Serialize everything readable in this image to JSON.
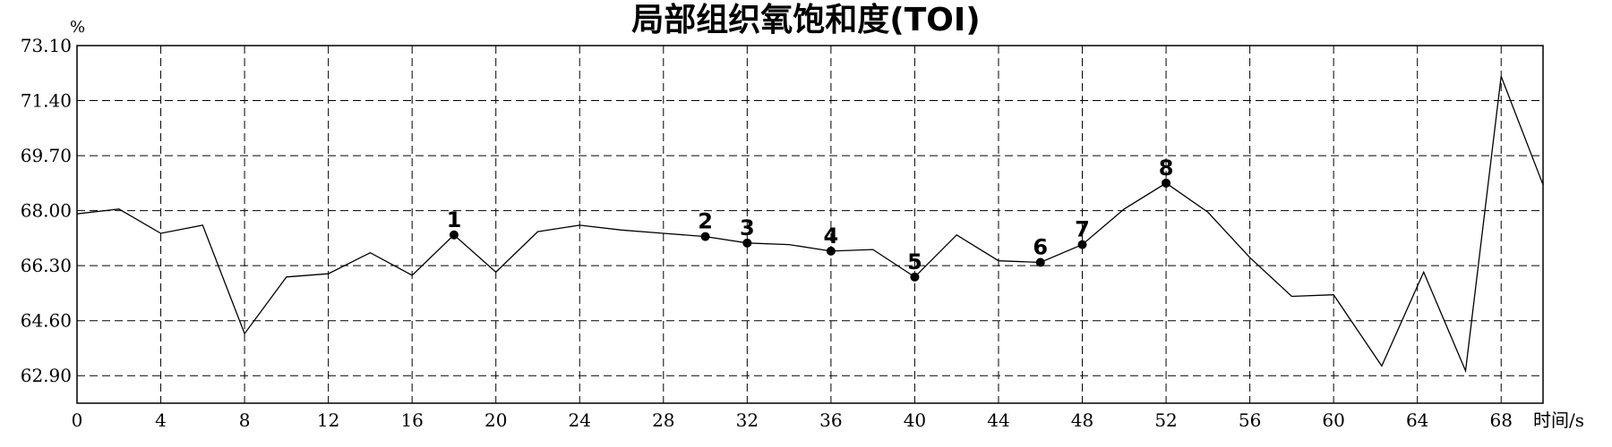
{
  "chart_data": {
    "type": "line",
    "title": "局部组织氧饱和度(TOI)",
    "ylabel": "%",
    "xlabel": "时间/s",
    "xlim": [
      0,
      70
    ],
    "ylim": [
      62.05,
      73.1
    ],
    "xticks": [
      "0",
      "4",
      "8",
      "12",
      "16",
      "20",
      "24",
      "28",
      "32",
      "36",
      "40",
      "44",
      "48",
      "52",
      "56",
      "60",
      "64",
      "68"
    ],
    "yticks": [
      "73.10",
      "71.40",
      "69.70",
      "68.00",
      "66.30",
      "64.60",
      "62.90"
    ],
    "grid": true,
    "series": [
      {
        "x": [
          0,
          2,
          4,
          6,
          8,
          10,
          12,
          14,
          16,
          18,
          20,
          22,
          24,
          26,
          28,
          30,
          32,
          34,
          36,
          38,
          40,
          42,
          44,
          46,
          48,
          50,
          52,
          54,
          56,
          58,
          60,
          62.3,
          64.3,
          66.3,
          68,
          70
        ],
        "y": [
          67.9,
          68.05,
          67.3,
          67.55,
          64.2,
          65.95,
          66.05,
          66.7,
          66.0,
          67.25,
          66.1,
          67.35,
          67.55,
          67.4,
          67.3,
          67.2,
          67.0,
          66.95,
          66.75,
          66.8,
          65.95,
          67.25,
          66.45,
          66.4,
          66.95,
          68.05,
          68.85,
          67.95,
          66.55,
          65.35,
          65.4,
          63.2,
          66.1,
          63.05,
          72.15,
          68.8
        ]
      }
    ],
    "markers": [
      {
        "label": "1",
        "x": 18,
        "y": 67.25
      },
      {
        "label": "2",
        "x": 30,
        "y": 67.2
      },
      {
        "label": "3",
        "x": 32,
        "y": 67.0
      },
      {
        "label": "4",
        "x": 36,
        "y": 66.75
      },
      {
        "label": "5",
        "x": 40,
        "y": 65.95
      },
      {
        "label": "6",
        "x": 46,
        "y": 66.4
      },
      {
        "label": "7",
        "x": 48,
        "y": 66.95
      },
      {
        "label": "8",
        "x": 52,
        "y": 68.85
      }
    ]
  }
}
